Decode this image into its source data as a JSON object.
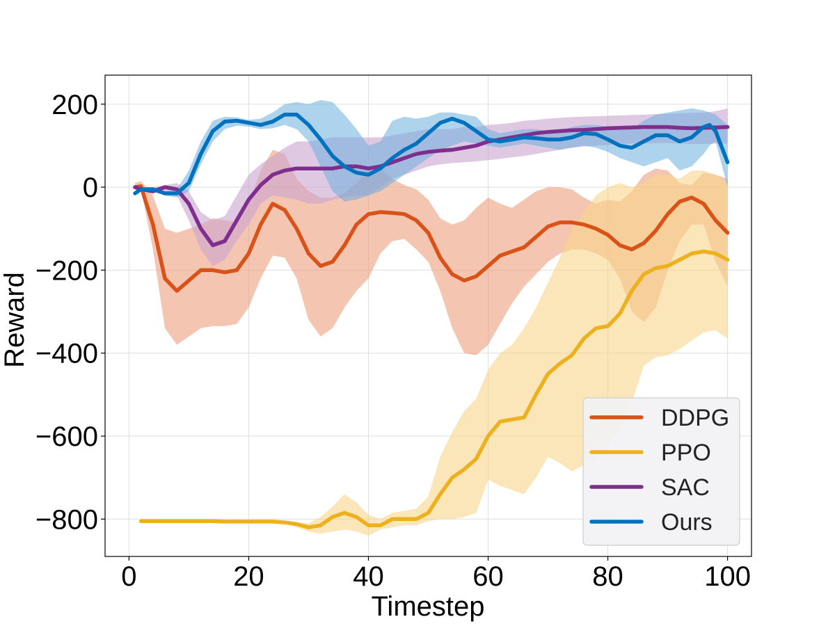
{
  "chart_data": {
    "type": "line",
    "title": "",
    "xlabel": "Timestep",
    "ylabel": "Reward",
    "xlim": [
      -4,
      104
    ],
    "ylim": [
      -890,
      270
    ],
    "xticks": [
      0,
      20,
      40,
      60,
      80,
      100
    ],
    "xtick_labels": [
      "0",
      "20",
      "40",
      "60",
      "80",
      "100"
    ],
    "yticks": [
      -800,
      -600,
      -400,
      -200,
      0,
      200
    ],
    "ytick_labels": [
      "−800",
      "−600",
      "−400",
      "−200",
      "0",
      "200"
    ],
    "grid": true,
    "legend_position": "lower-right",
    "series": [
      {
        "name": "DDPG",
        "color": "#D95319",
        "band_color": "#ECA07F",
        "band_opacity": 0.6,
        "x": [
          1,
          2,
          4,
          6,
          8,
          10,
          12,
          14,
          16,
          18,
          20,
          22,
          24,
          26,
          28,
          30,
          32,
          34,
          36,
          38,
          40,
          42,
          44,
          46,
          48,
          50,
          52,
          54,
          56,
          58,
          60,
          62,
          64,
          66,
          68,
          70,
          72,
          74,
          76,
          78,
          80,
          82,
          84,
          86,
          88,
          90,
          92,
          94,
          96,
          98,
          100
        ],
        "y": [
          0,
          2,
          -90,
          -220,
          -250,
          -225,
          -200,
          -200,
          -205,
          -200,
          -160,
          -90,
          -40,
          -55,
          -100,
          -160,
          -190,
          -180,
          -140,
          -90,
          -65,
          -60,
          -62,
          -65,
          -80,
          -110,
          -170,
          -210,
          -225,
          -215,
          -190,
          -165,
          -155,
          -145,
          -120,
          -95,
          -85,
          -85,
          -90,
          -100,
          -115,
          -140,
          -150,
          -135,
          -105,
          -65,
          -35,
          -25,
          -40,
          -80,
          -110
        ],
        "lower": [
          0,
          -5,
          -150,
          -340,
          -380,
          -360,
          -340,
          -335,
          -335,
          -330,
          -290,
          -220,
          -165,
          -170,
          -220,
          -320,
          -360,
          -340,
          -290,
          -250,
          -220,
          -160,
          -130,
          -125,
          -150,
          -180,
          -250,
          -340,
          -400,
          -405,
          -380,
          -330,
          -280,
          -240,
          -210,
          -180,
          -160,
          -150,
          -150,
          -160,
          -175,
          -220,
          -300,
          -325,
          -290,
          -200,
          -130,
          -90,
          -90,
          -180,
          -240
        ],
        "upper": [
          10,
          15,
          -20,
          -100,
          -110,
          -100,
          -90,
          -75,
          -80,
          -85,
          -40,
          40,
          90,
          80,
          20,
          -10,
          -25,
          -25,
          -15,
          10,
          40,
          45,
          20,
          5,
          -5,
          -30,
          -75,
          -90,
          -80,
          -50,
          -25,
          -40,
          -50,
          -30,
          -10,
          0,
          0,
          -5,
          -25,
          -40,
          -30,
          -35,
          -10,
          30,
          45,
          40,
          10,
          5,
          35,
          30,
          20
        ]
      },
      {
        "name": "PPO",
        "color": "#EDB120",
        "band_color": "#F6D58A",
        "band_opacity": 0.6,
        "x": [
          2,
          4,
          6,
          8,
          10,
          12,
          14,
          16,
          18,
          20,
          22,
          24,
          26,
          28,
          30,
          32,
          34,
          36,
          38,
          40,
          42,
          44,
          46,
          48,
          50,
          52,
          54,
          56,
          58,
          60,
          62,
          64,
          66,
          68,
          70,
          72,
          74,
          76,
          78,
          80,
          82,
          84,
          86,
          88,
          90,
          92,
          94,
          96,
          98,
          100
        ],
        "y": [
          -805,
          -805,
          -805,
          -805,
          -805,
          -805,
          -805,
          -806,
          -806,
          -806,
          -806,
          -806,
          -808,
          -812,
          -820,
          -815,
          -795,
          -785,
          -795,
          -815,
          -815,
          -800,
          -800,
          -800,
          -785,
          -740,
          -700,
          -680,
          -655,
          -600,
          -565,
          -560,
          -555,
          -500,
          -450,
          -425,
          -405,
          -365,
          -340,
          -335,
          -305,
          -250,
          -210,
          -195,
          -190,
          -175,
          -160,
          -155,
          -160,
          -175
        ],
        "lower": [
          -805,
          -805,
          -805,
          -805,
          -805,
          -805,
          -805,
          -806,
          -806,
          -806,
          -806,
          -806,
          -810,
          -820,
          -830,
          -835,
          -830,
          -825,
          -830,
          -840,
          -825,
          -820,
          -815,
          -815,
          -805,
          -800,
          -800,
          -795,
          -785,
          -705,
          -720,
          -730,
          -740,
          -700,
          -650,
          -665,
          -685,
          -670,
          -655,
          -620,
          -580,
          -520,
          -430,
          -410,
          -405,
          -390,
          -370,
          -350,
          -345,
          -365
        ],
        "upper": [
          -805,
          -805,
          -805,
          -805,
          -805,
          -805,
          -805,
          -806,
          -806,
          -806,
          -806,
          -806,
          -806,
          -808,
          -810,
          -795,
          -770,
          -740,
          -760,
          -790,
          -800,
          -785,
          -780,
          -775,
          -745,
          -650,
          -590,
          -540,
          -510,
          -440,
          -400,
          -380,
          -340,
          -290,
          -230,
          -170,
          -100,
          -60,
          -20,
          0,
          10,
          0,
          10,
          30,
          30,
          20,
          40,
          40,
          30,
          10
        ]
      },
      {
        "name": "SAC",
        "color": "#7E2F8E",
        "band_color": "#C9A3CF",
        "band_opacity": 0.6,
        "x": [
          1,
          2,
          4,
          6,
          8,
          10,
          12,
          14,
          16,
          18,
          20,
          22,
          24,
          26,
          28,
          30,
          32,
          34,
          36,
          38,
          40,
          42,
          44,
          46,
          48,
          50,
          52,
          54,
          56,
          58,
          60,
          62,
          64,
          66,
          68,
          70,
          72,
          74,
          76,
          78,
          80,
          82,
          84,
          86,
          88,
          90,
          92,
          94,
          96,
          98,
          100
        ],
        "y": [
          0,
          -5,
          -10,
          0,
          -5,
          -40,
          -100,
          -140,
          -130,
          -80,
          -30,
          5,
          30,
          40,
          45,
          45,
          45,
          45,
          50,
          50,
          45,
          50,
          60,
          70,
          80,
          85,
          88,
          90,
          95,
          100,
          110,
          115,
          120,
          125,
          130,
          133,
          135,
          137,
          138,
          140,
          142,
          143,
          144,
          145,
          145,
          145,
          143,
          142,
          143,
          144,
          145
        ],
        "lower": [
          -5,
          -10,
          -15,
          -10,
          -20,
          -80,
          -150,
          -190,
          -175,
          -130,
          -90,
          -40,
          -20,
          -25,
          -30,
          -40,
          -40,
          -30,
          -25,
          -20,
          -20,
          0,
          20,
          30,
          40,
          50,
          55,
          58,
          60,
          62,
          65,
          68,
          72,
          75,
          80,
          85,
          90,
          95,
          98,
          100,
          102,
          104,
          105,
          105,
          106,
          106,
          105,
          104,
          104,
          105,
          105
        ],
        "upper": [
          5,
          0,
          0,
          5,
          10,
          -10,
          -60,
          -80,
          -70,
          -20,
          30,
          55,
          75,
          95,
          110,
          110,
          115,
          120,
          120,
          120,
          120,
          120,
          125,
          130,
          135,
          140,
          140,
          140,
          145,
          145,
          150,
          152,
          155,
          160,
          162,
          165,
          167,
          169,
          170,
          171,
          172,
          173,
          174,
          175,
          176,
          177,
          178,
          179,
          180,
          183,
          190
        ]
      },
      {
        "name": "Ours",
        "color": "#0072BD",
        "band_color": "#6BAFDF",
        "band_opacity": 0.55,
        "x": [
          1,
          2,
          4,
          6,
          8,
          10,
          12,
          14,
          16,
          18,
          20,
          22,
          24,
          26,
          28,
          30,
          32,
          34,
          36,
          38,
          40,
          42,
          44,
          46,
          48,
          50,
          52,
          54,
          56,
          58,
          60,
          62,
          64,
          66,
          68,
          70,
          72,
          74,
          76,
          78,
          80,
          82,
          84,
          86,
          88,
          90,
          92,
          94,
          96,
          97,
          98,
          100
        ],
        "y": [
          -15,
          -5,
          -5,
          -15,
          -15,
          10,
          80,
          135,
          158,
          160,
          155,
          150,
          158,
          175,
          175,
          150,
          115,
          75,
          50,
          35,
          30,
          45,
          70,
          90,
          105,
          130,
          155,
          165,
          155,
          135,
          115,
          110,
          115,
          120,
          118,
          115,
          115,
          120,
          130,
          128,
          115,
          100,
          95,
          110,
          125,
          125,
          110,
          120,
          145,
          150,
          135,
          60
        ],
        "lower": [
          -20,
          -10,
          -10,
          -20,
          -25,
          -10,
          55,
          110,
          140,
          148,
          146,
          140,
          142,
          150,
          140,
          110,
          50,
          -10,
          -35,
          -30,
          -20,
          -10,
          10,
          30,
          50,
          70,
          90,
          100,
          110,
          105,
          100,
          95,
          100,
          105,
          100,
          95,
          90,
          95,
          100,
          95,
          85,
          70,
          60,
          50,
          60,
          70,
          40,
          50,
          80,
          100,
          110,
          0
        ],
        "upper": [
          -10,
          0,
          0,
          -10,
          -5,
          40,
          110,
          160,
          170,
          168,
          162,
          165,
          180,
          200,
          205,
          200,
          210,
          205,
          175,
          140,
          100,
          110,
          160,
          170,
          165,
          170,
          180,
          180,
          175,
          170,
          140,
          130,
          135,
          140,
          140,
          135,
          135,
          145,
          150,
          150,
          145,
          140,
          140,
          160,
          175,
          180,
          185,
          190,
          185,
          180,
          175,
          150
        ]
      }
    ]
  }
}
